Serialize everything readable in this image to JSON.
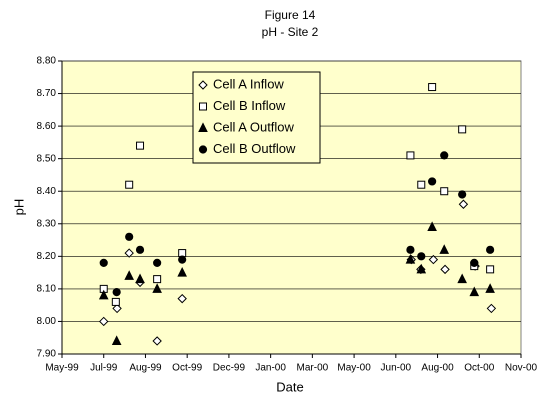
{
  "chart_data": {
    "type": "scatter",
    "title": "Figure 14",
    "subtitle": "pH - Site 2",
    "x_label": "Date",
    "y_label": "pH",
    "xlim": [
      0,
      11
    ],
    "xticks": [
      {
        "value": 0,
        "label": "May-99"
      },
      {
        "value": 1,
        "label": "Jul-99"
      },
      {
        "value": 2,
        "label": "Aug-99"
      },
      {
        "value": 3,
        "label": "Oct-99"
      },
      {
        "value": 4,
        "label": "Dec-99"
      },
      {
        "value": 5,
        "label": "Jan-00"
      },
      {
        "value": 6,
        "label": "Mar-00"
      },
      {
        "value": 7,
        "label": "May-00"
      },
      {
        "value": 8,
        "label": "Jun-00"
      },
      {
        "value": 9,
        "label": "Aug-00"
      },
      {
        "value": 10,
        "label": "Oct-00"
      },
      {
        "value": 11,
        "label": "Nov-00"
      }
    ],
    "ylim": [
      7.9,
      8.8
    ],
    "yticks": [
      {
        "value": 7.9,
        "label": "7.90"
      },
      {
        "value": 8.0,
        "label": "8.00"
      },
      {
        "value": 8.1,
        "label": "8.10"
      },
      {
        "value": 8.2,
        "label": "8.20"
      },
      {
        "value": 8.3,
        "label": "8.30"
      },
      {
        "value": 8.4,
        "label": "8.40"
      },
      {
        "value": 8.5,
        "label": "8.50"
      },
      {
        "value": 8.6,
        "label": "8.60"
      },
      {
        "value": 8.7,
        "label": "8.70"
      },
      {
        "value": 8.8,
        "label": "8.80"
      }
    ],
    "grid": true,
    "plot_background": "#ffffcc",
    "legend": "top-center",
    "series": [
      {
        "name": "Cell A Inflow",
        "color": "#000000",
        "marker": "diamond-open",
        "x": [
          1.0,
          1.32,
          1.61,
          1.87,
          2.28,
          2.88,
          8.37,
          8.6,
          8.9,
          9.18,
          9.62,
          9.9,
          10.29
        ],
        "values": [
          8.0,
          8.04,
          8.21,
          8.12,
          7.94,
          8.07,
          8.19,
          8.16,
          8.19,
          8.16,
          8.36,
          8.17,
          8.04
        ]
      },
      {
        "name": "Cell B Inflow",
        "color": "#000000",
        "marker": "square-open",
        "x": [
          1.0,
          1.29,
          1.61,
          1.87,
          2.28,
          2.88,
          8.35,
          8.61,
          8.87,
          9.16,
          9.59,
          9.88,
          10.26
        ],
        "values": [
          8.1,
          8.06,
          8.42,
          8.54,
          8.13,
          8.21,
          8.51,
          8.42,
          8.72,
          8.4,
          8.59,
          8.17,
          8.16
        ]
      },
      {
        "name": "Cell A Outflow",
        "color": "#000000",
        "marker": "triangle",
        "x": [
          1.0,
          1.31,
          1.61,
          1.87,
          2.28,
          2.88,
          8.35,
          8.61,
          8.87,
          9.16,
          9.59,
          9.88,
          10.26
        ],
        "values": [
          8.08,
          7.94,
          8.14,
          8.13,
          8.1,
          8.15,
          8.19,
          8.16,
          8.29,
          8.22,
          8.13,
          8.09,
          8.1
        ]
      },
      {
        "name": "Cell B Outflow",
        "color": "#000000",
        "marker": "circle",
        "x": [
          1.0,
          1.31,
          1.61,
          1.87,
          2.28,
          2.88,
          8.35,
          8.61,
          8.87,
          9.16,
          9.59,
          9.88,
          10.26
        ],
        "values": [
          8.18,
          8.09,
          8.26,
          8.22,
          8.18,
          8.19,
          8.22,
          8.2,
          8.43,
          8.51,
          8.39,
          8.18,
          8.22
        ]
      }
    ]
  }
}
